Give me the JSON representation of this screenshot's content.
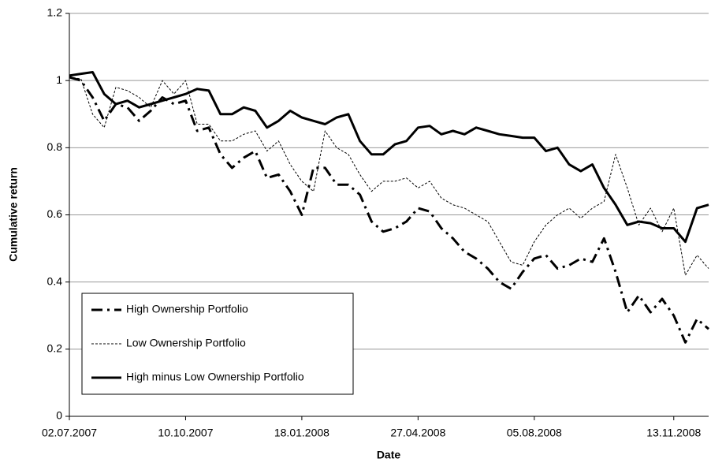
{
  "chart_data": {
    "type": "line",
    "x_label": "Date",
    "y_label": "Cumulative return",
    "categories": [
      "02.07.2007",
      null,
      null,
      null,
      null,
      null,
      null,
      null,
      null,
      null,
      "10.10.2007",
      null,
      null,
      null,
      null,
      null,
      null,
      null,
      null,
      null,
      "18.01.2008",
      null,
      null,
      null,
      null,
      null,
      null,
      null,
      null,
      null,
      "27.04.2008",
      null,
      null,
      null,
      null,
      null,
      null,
      null,
      null,
      null,
      "05.08.2008",
      null,
      null,
      null,
      null,
      null,
      null,
      null,
      null,
      null,
      null,
      null,
      "13.11.2008",
      null,
      null,
      null
    ],
    "series": [
      {
        "name": "High Ownership Portfolio",
        "color": "#000000",
        "dash": "dash-dot",
        "width": 3,
        "values": [
          1.01,
          1.0,
          0.95,
          0.88,
          0.93,
          0.92,
          0.88,
          0.91,
          0.95,
          0.93,
          0.94,
          0.85,
          0.86,
          0.78,
          0.74,
          0.77,
          0.79,
          0.71,
          0.72,
          0.67,
          0.6,
          0.74,
          0.74,
          0.69,
          0.69,
          0.66,
          0.58,
          0.55,
          0.56,
          0.58,
          0.62,
          0.61,
          0.56,
          0.53,
          0.49,
          0.47,
          0.44,
          0.4,
          0.38,
          0.43,
          0.47,
          0.48,
          0.44,
          0.45,
          0.47,
          0.46,
          0.53,
          0.43,
          0.31,
          0.36,
          0.31,
          0.35,
          0.3,
          0.22,
          0.29,
          0.26
        ]
      },
      {
        "name": "Low Ownership Portfolio",
        "color": "#000000",
        "dash": "dotted",
        "width": 1,
        "values": [
          1.01,
          1.005,
          0.9,
          0.86,
          0.98,
          0.97,
          0.95,
          0.92,
          1.0,
          0.96,
          1.0,
          0.87,
          0.87,
          0.82,
          0.82,
          0.84,
          0.85,
          0.79,
          0.82,
          0.75,
          0.7,
          0.67,
          0.85,
          0.8,
          0.78,
          0.72,
          0.67,
          0.7,
          0.7,
          0.71,
          0.68,
          0.7,
          0.65,
          0.63,
          0.62,
          0.6,
          0.58,
          0.52,
          0.46,
          0.45,
          0.52,
          0.57,
          0.6,
          0.62,
          0.59,
          0.62,
          0.64,
          0.78,
          0.68,
          0.57,
          0.62,
          0.55,
          0.62,
          0.42,
          0.48,
          0.44
        ]
      },
      {
        "name": "High minus Low Ownership Portfolio",
        "color": "#000000",
        "dash": "solid",
        "width": 3,
        "values": [
          1.015,
          1.02,
          1.025,
          0.96,
          0.93,
          0.94,
          0.92,
          0.93,
          0.94,
          0.95,
          0.96,
          0.975,
          0.97,
          0.9,
          0.9,
          0.92,
          0.91,
          0.86,
          0.88,
          0.91,
          0.89,
          0.88,
          0.87,
          0.89,
          0.9,
          0.82,
          0.78,
          0.78,
          0.81,
          0.82,
          0.86,
          0.865,
          0.84,
          0.85,
          0.84,
          0.86,
          0.85,
          0.84,
          0.835,
          0.83,
          0.83,
          0.79,
          0.8,
          0.75,
          0.73,
          0.75,
          0.68,
          0.63,
          0.57,
          0.58,
          0.575,
          0.56,
          0.56,
          0.52,
          0.62,
          0.63
        ]
      }
    ],
    "ylim": [
      0,
      1.2
    ],
    "yticks": [
      0,
      0.2,
      0.4,
      0.6,
      0.8,
      1,
      1.2
    ],
    "grid": true,
    "legend": "lower left"
  }
}
